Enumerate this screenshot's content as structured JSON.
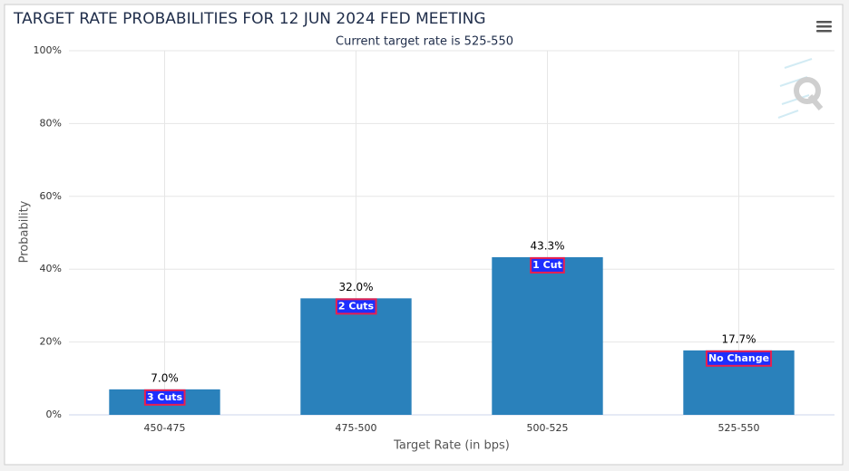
{
  "chart_data": {
    "type": "bar",
    "title": "TARGET RATE PROBABILITIES FOR 12 JUN 2024 FED MEETING",
    "subtitle": "Current target rate is 525-550",
    "x_label": "Target Rate (in bps)",
    "y_label": "Probability",
    "categories": [
      "450-475",
      "475-500",
      "500-525",
      "525-550"
    ],
    "values": [
      7.0,
      32.0,
      43.3,
      17.7
    ],
    "value_labels": [
      "7.0%",
      "32.0%",
      "43.3%",
      "17.7%"
    ],
    "annotations": [
      "3 Cuts",
      "2 Cuts",
      "1 Cut",
      "No Change"
    ],
    "color": "#2a81bb",
    "ylim": [
      0,
      100
    ],
    "yticks": [
      {
        "value": 0,
        "label": "0%"
      },
      {
        "value": 20,
        "label": "20%"
      },
      {
        "value": 40,
        "label": "40%"
      },
      {
        "value": 60,
        "label": "60%"
      },
      {
        "value": 80,
        "label": "80%"
      },
      {
        "value": 100,
        "label": "100%"
      }
    ],
    "grid": true
  }
}
